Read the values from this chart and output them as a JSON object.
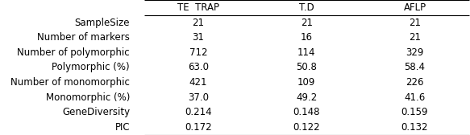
{
  "columns": [
    "TE  TRAP",
    "T.D",
    "AFLP"
  ],
  "rows": [
    "SampleSize",
    "Number of markers",
    "Number of polymorphic",
    "Polymorphic (%)",
    "Number of monomorphic",
    "Monomorphic (%)",
    "GeneDiversity",
    "PIC"
  ],
  "values": [
    [
      "21",
      "21",
      "21"
    ],
    [
      "31",
      "16",
      "21"
    ],
    [
      "712",
      "114",
      "329"
    ],
    [
      "63.0",
      "50.8",
      "58.4"
    ],
    [
      "421",
      "109",
      "226"
    ],
    [
      "37.0",
      "49.2",
      "41.6"
    ],
    [
      "0.214",
      "0.148",
      "0.159"
    ],
    [
      "0.172",
      "0.122",
      "0.132"
    ]
  ],
  "background_color": "#ffffff",
  "text_color": "#000000",
  "font_size": 8.5,
  "header_font_size": 8.5,
  "line_color": "#000000",
  "line_width": 0.8
}
